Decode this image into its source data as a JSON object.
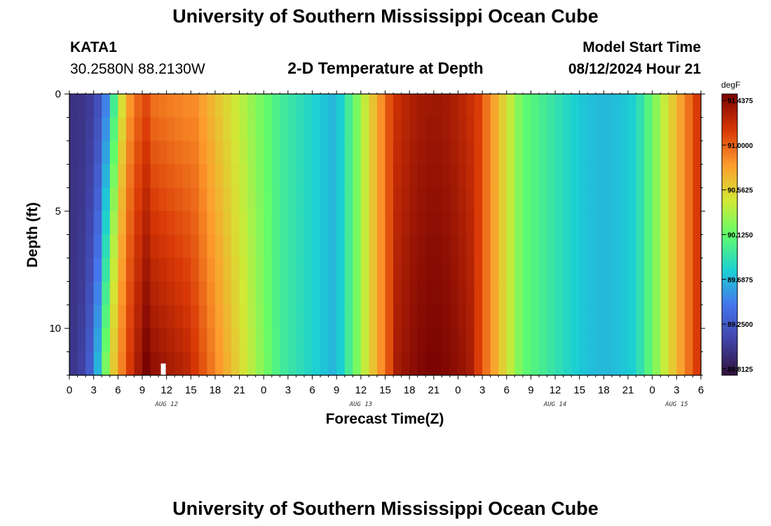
{
  "page": {
    "title": "University of Southern Mississippi Ocean Cube",
    "station": "KATA1",
    "coords": "30.2580N  88.2130W",
    "plot_title": "2-D Temperature at Depth",
    "model_start_label": "Model Start Time",
    "model_start_value": "08/12/2024 Hour 21",
    "footer_title": "University of Southern Mississippi Ocean Cube"
  },
  "chart_data": {
    "type": "heatmap",
    "title": "2-D Temperature at Depth",
    "xlabel": "Forecast Time(Z)",
    "ylabel": "Depth (ft)",
    "x_range_hours": [
      0,
      78
    ],
    "y_range_ft": [
      0,
      12
    ],
    "y_ticks": [
      "0",
      "5",
      "10"
    ],
    "x_tick_labels": [
      "0",
      "3",
      "6",
      "9",
      "12",
      "15",
      "18",
      "21",
      "0",
      "3",
      "6",
      "9",
      "12",
      "15",
      "18",
      "21",
      "0",
      "3",
      "6",
      "9",
      "12",
      "15",
      "18",
      "21",
      "0",
      "3",
      "6"
    ],
    "date_labels": [
      {
        "label": "AUG 12",
        "hour": 12
      },
      {
        "label": "AUG 13",
        "hour": 36
      },
      {
        "label": "AUG 14",
        "hour": 60
      },
      {
        "label": "AUG 15",
        "hour": 75
      }
    ],
    "colorbar": {
      "unit": "degF",
      "min": 88.75,
      "max": 91.5,
      "labels": [
        "91.4375",
        "91.0000",
        "90.5625",
        "90.1250",
        "89.6875",
        "89.2500",
        "88.8125"
      ]
    },
    "grid": false,
    "legend_position": "right"
  }
}
